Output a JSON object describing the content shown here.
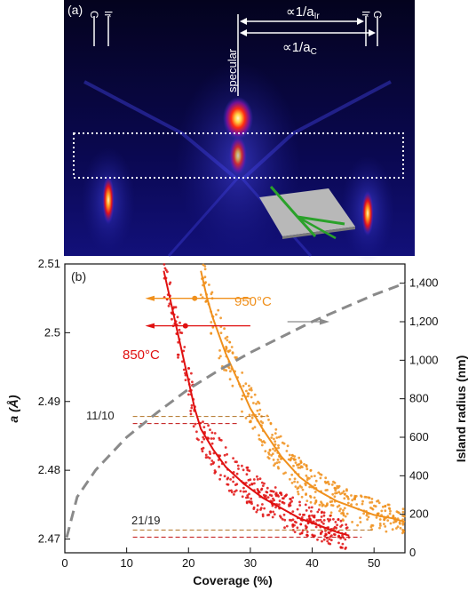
{
  "panel_a": {
    "label": "(a)",
    "left_markers": [
      "C",
      "Ir"
    ],
    "right_markers": [
      "Ir",
      "C"
    ],
    "annot_ir": "∝1/a",
    "annot_ir_sub": "Ir",
    "annot_c": "∝1/a",
    "annot_c_sub": "C",
    "specular": "specular",
    "colors": {
      "background": "#08063a",
      "glow": "#3b3bd8",
      "hot": "#ff2a10",
      "core": "#fff6c0",
      "dashed_box": "#ffffff",
      "inset_plate": "#b8b8b8",
      "inset_beam": "#2aa12a"
    }
  },
  "panel_b": {
    "label": "(b)",
    "xlabel": "Coverage (%)",
    "ylabel": "a (Å)",
    "y2label": "Island radius (nm)",
    "xticks": [
      "0",
      "10",
      "20",
      "30",
      "40",
      "50"
    ],
    "yticks": [
      "2.47",
      "2.48",
      "2.49",
      "2.5",
      "2.51"
    ],
    "y2ticks": [
      "0",
      "200",
      "400",
      "600",
      "800",
      "1,000",
      "1,200",
      "1,400"
    ],
    "label_950": "950°C",
    "label_850": "850°C",
    "ratio_11_10": "11/10",
    "ratio_21_19": "21/19",
    "colors": {
      "c950": "#f0901c",
      "c850": "#e01010",
      "radius": "#8a8a8a",
      "arrow": "#8a8a8a"
    }
  },
  "chart_data": {
    "type": "scatter",
    "xlabel": "Coverage (%)",
    "ylabel": "a (Å)",
    "y2label": "Island radius (nm)",
    "xlim": [
      0,
      55
    ],
    "ylim": [
      2.468,
      2.51
    ],
    "y2lim": [
      0,
      1500
    ],
    "series": [
      {
        "name": "950°C",
        "color": "#f0901c",
        "x": [
          22,
          23,
          24,
          26,
          28,
          30,
          32,
          35,
          38,
          41,
          44,
          47,
          50,
          53,
          55
        ],
        "y": [
          2.509,
          2.505,
          2.502,
          2.497,
          2.493,
          2.489,
          2.486,
          2.482,
          2.479,
          2.477,
          2.4755,
          2.4745,
          2.4735,
          2.473,
          2.4725
        ]
      },
      {
        "name": "850°C",
        "color": "#e01010",
        "x": [
          16,
          17,
          18,
          19,
          20,
          21,
          22,
          24,
          26,
          29,
          32,
          35,
          38,
          41,
          44,
          46
        ],
        "y": [
          2.509,
          2.505,
          2.501,
          2.497,
          2.493,
          2.489,
          2.486,
          2.483,
          2.4805,
          2.478,
          2.476,
          2.4745,
          2.473,
          2.472,
          2.471,
          2.4705
        ]
      },
      {
        "name": "Island radius",
        "axis": "right",
        "style": "dashed",
        "color": "#8a8a8a",
        "x": [
          0.3,
          2,
          5,
          10,
          15,
          20,
          25,
          30,
          35,
          40,
          45,
          50,
          55
        ],
        "y": [
          80,
          290,
          430,
          600,
          730,
          850,
          950,
          1040,
          1120,
          1200,
          1270,
          1340,
          1400
        ]
      }
    ],
    "reference_lines": [
      {
        "label": "11/10",
        "y": 2.4873
      },
      {
        "label": "21/19",
        "y": 2.4708
      }
    ],
    "annotations": [
      "950°C",
      "850°C",
      "11/10",
      "21/19"
    ]
  }
}
